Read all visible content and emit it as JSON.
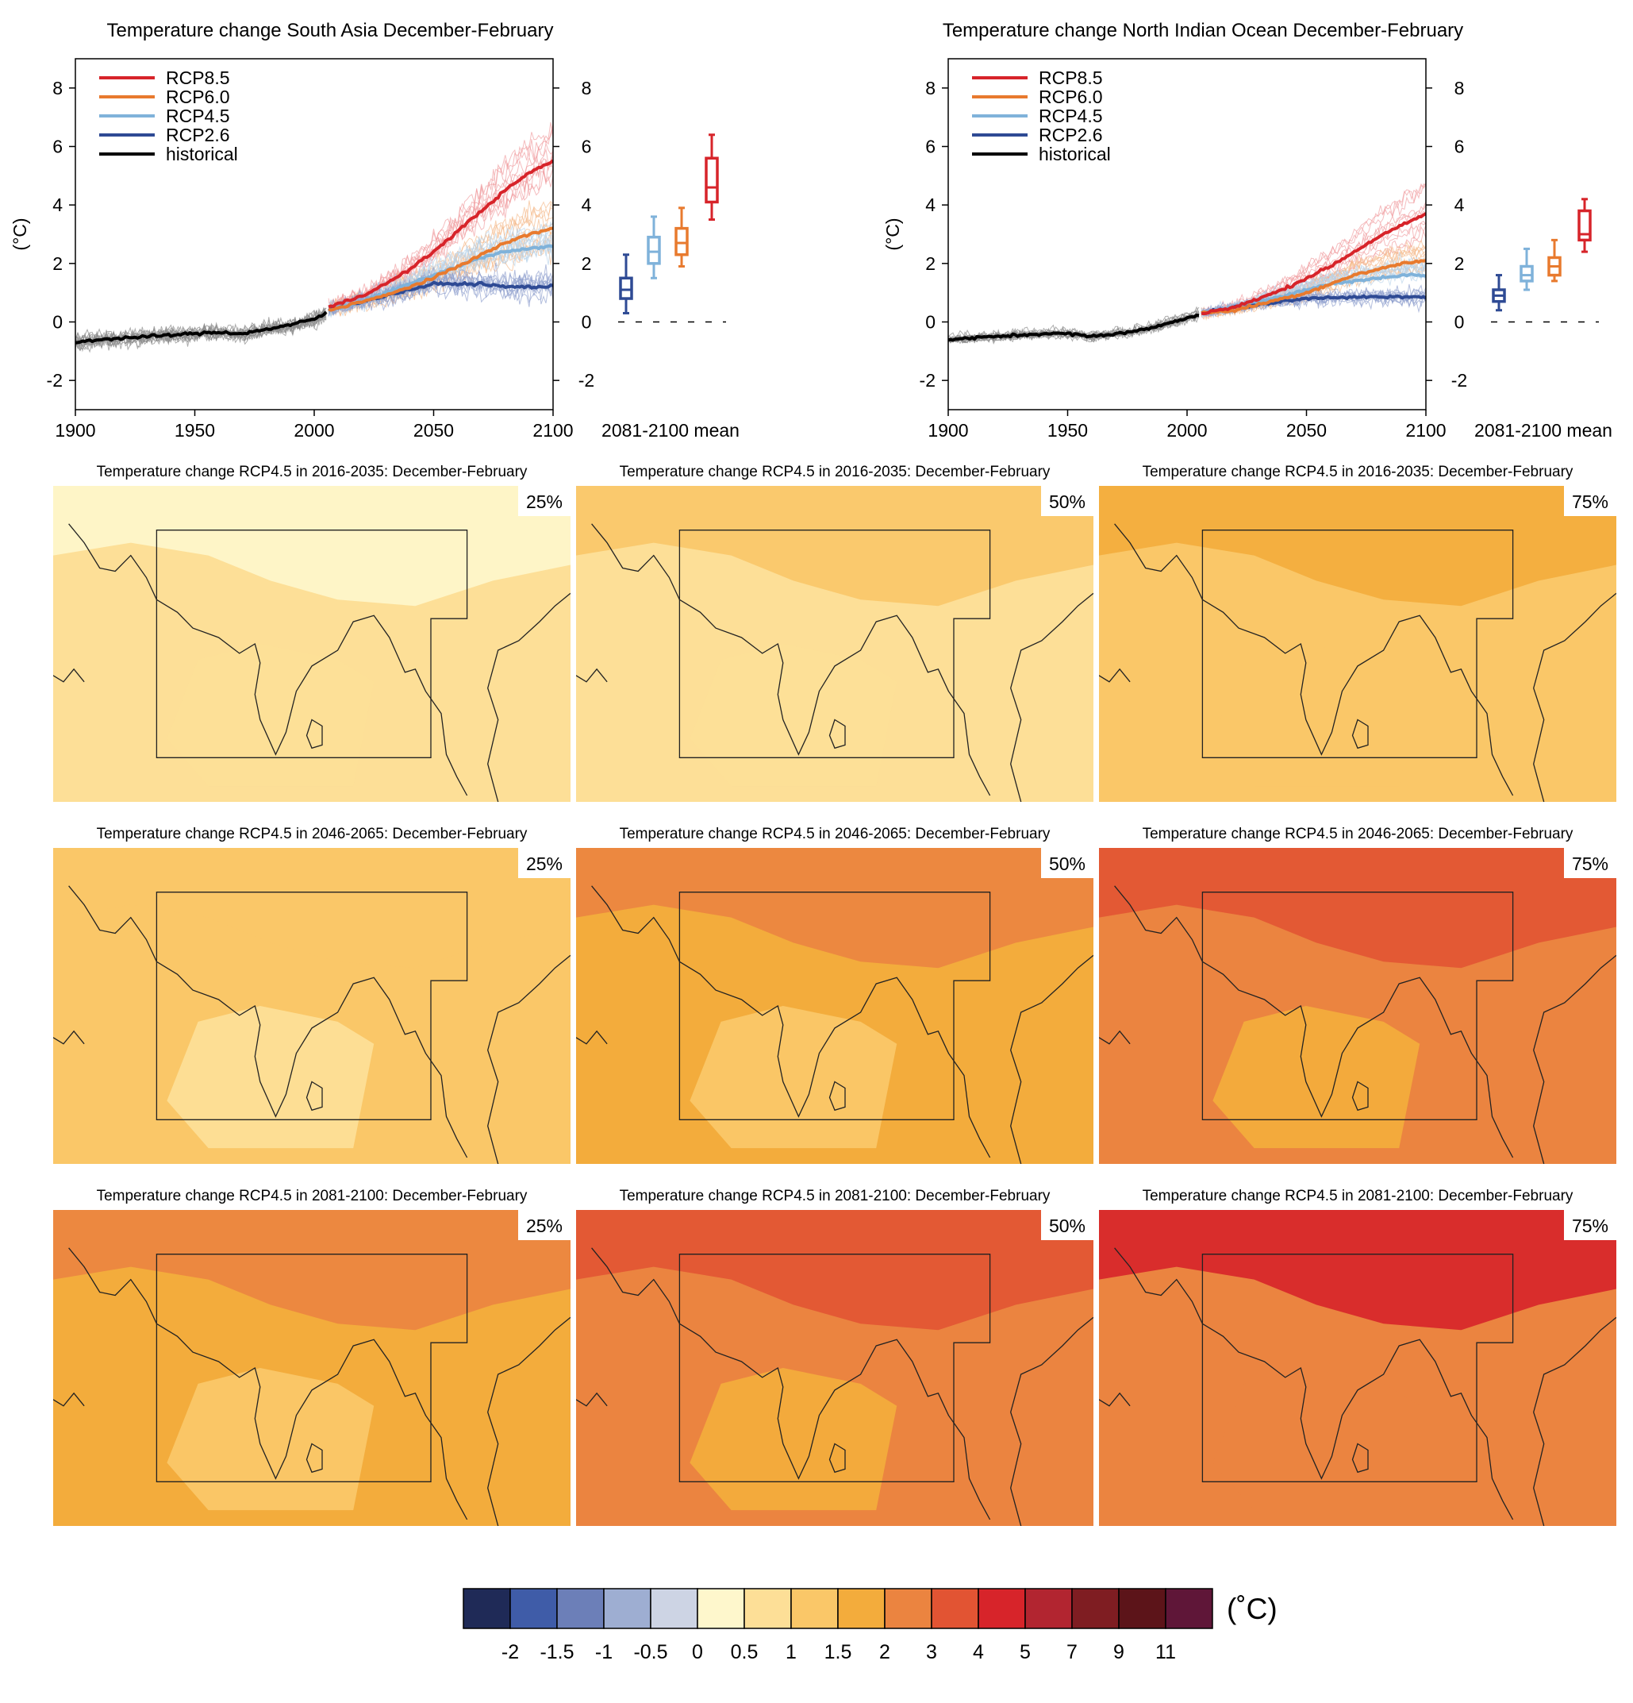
{
  "palette": {
    "rcp85": "#d7242a",
    "rcp60": "#e87a2e",
    "rcp45": "#7fb2da",
    "rcp26": "#2e4a94",
    "historical": "#000000",
    "historical_members": "#8a8a8a"
  },
  "timeseries_xticks": [
    "1900",
    "1950",
    "2000",
    "2050",
    "2100"
  ],
  "timeseries_yticks": [
    "-2",
    "0",
    "2",
    "4",
    "6",
    "8"
  ],
  "chart_data": [
    {
      "type": "line",
      "title": "Temperature change South Asia December-February",
      "ylabel": "(°C)",
      "xlabel": "",
      "xlim": [
        1900,
        2100
      ],
      "ylim": [
        -3,
        9
      ],
      "legend_position": "top-left",
      "series": [
        {
          "name": "RCP8.5",
          "color": "#d7242a",
          "x": [
            2006,
            2020,
            2030,
            2040,
            2050,
            2060,
            2070,
            2080,
            2090,
            2100
          ],
          "y": [
            0.5,
            0.9,
            1.3,
            1.8,
            2.4,
            3.1,
            3.8,
            4.5,
            5.1,
            5.5
          ]
        },
        {
          "name": "RCP6.0",
          "color": "#e87a2e",
          "x": [
            2006,
            2020,
            2030,
            2040,
            2050,
            2060,
            2070,
            2080,
            2090,
            2100
          ],
          "y": [
            0.4,
            0.7,
            0.9,
            1.2,
            1.5,
            1.9,
            2.3,
            2.7,
            3.0,
            3.2
          ]
        },
        {
          "name": "RCP4.5",
          "color": "#7fb2da",
          "x": [
            2006,
            2020,
            2030,
            2040,
            2050,
            2060,
            2070,
            2080,
            2090,
            2100
          ],
          "y": [
            0.4,
            0.7,
            1.0,
            1.3,
            1.6,
            1.9,
            2.2,
            2.4,
            2.5,
            2.6
          ]
        },
        {
          "name": "RCP2.6",
          "color": "#2e4a94",
          "x": [
            2006,
            2020,
            2030,
            2040,
            2050,
            2060,
            2070,
            2080,
            2090,
            2100
          ],
          "y": [
            0.4,
            0.7,
            0.9,
            1.1,
            1.3,
            1.3,
            1.3,
            1.2,
            1.2,
            1.2
          ]
        },
        {
          "name": "historical",
          "color": "#000000",
          "x": [
            1900,
            1910,
            1920,
            1930,
            1940,
            1950,
            1960,
            1970,
            1980,
            1990,
            2000,
            2005
          ],
          "y": [
            -0.7,
            -0.6,
            -0.55,
            -0.5,
            -0.45,
            -0.4,
            -0.35,
            -0.4,
            -0.25,
            -0.1,
            0.1,
            0.3
          ]
        }
      ],
      "box_label": "2081-2100 mean",
      "boxes": [
        {
          "name": "RCP2.6",
          "color": "#2e4a94",
          "min": 0.3,
          "q1": 0.8,
          "median": 1.1,
          "q3": 1.5,
          "max": 2.3
        },
        {
          "name": "RCP4.5",
          "color": "#7fb2da",
          "min": 1.5,
          "q1": 2.0,
          "median": 2.4,
          "q3": 2.9,
          "max": 3.6
        },
        {
          "name": "RCP6.0",
          "color": "#e87a2e",
          "min": 1.9,
          "q1": 2.3,
          "median": 2.7,
          "q3": 3.2,
          "max": 3.9
        },
        {
          "name": "RCP8.5",
          "color": "#d7242a",
          "min": 3.5,
          "q1": 4.1,
          "median": 4.6,
          "q3": 5.6,
          "max": 6.4
        }
      ]
    },
    {
      "type": "line",
      "title": "Temperature change North Indian Ocean December-February",
      "ylabel": "(°C)",
      "xlabel": "",
      "xlim": [
        1900,
        2100
      ],
      "ylim": [
        -3,
        9
      ],
      "legend_position": "top-left",
      "series": [
        {
          "name": "RCP8.5",
          "color": "#d7242a",
          "x": [
            2006,
            2020,
            2030,
            2040,
            2050,
            2060,
            2070,
            2080,
            2090,
            2100
          ],
          "y": [
            0.3,
            0.5,
            0.8,
            1.1,
            1.5,
            1.9,
            2.4,
            2.9,
            3.3,
            3.7
          ]
        },
        {
          "name": "RCP6.0",
          "color": "#e87a2e",
          "x": [
            2006,
            2020,
            2030,
            2040,
            2050,
            2060,
            2070,
            2080,
            2090,
            2100
          ],
          "y": [
            0.3,
            0.4,
            0.6,
            0.8,
            1.0,
            1.3,
            1.6,
            1.8,
            2.0,
            2.1
          ]
        },
        {
          "name": "RCP4.5",
          "color": "#7fb2da",
          "x": [
            2006,
            2020,
            2030,
            2040,
            2050,
            2060,
            2070,
            2080,
            2090,
            2100
          ],
          "y": [
            0.3,
            0.5,
            0.7,
            0.9,
            1.1,
            1.3,
            1.4,
            1.5,
            1.6,
            1.6
          ]
        },
        {
          "name": "RCP2.6",
          "color": "#2e4a94",
          "x": [
            2006,
            2020,
            2030,
            2040,
            2050,
            2060,
            2070,
            2080,
            2090,
            2100
          ],
          "y": [
            0.3,
            0.5,
            0.6,
            0.7,
            0.8,
            0.85,
            0.85,
            0.85,
            0.85,
            0.85
          ]
        },
        {
          "name": "historical",
          "color": "#000000",
          "x": [
            1900,
            1910,
            1920,
            1930,
            1940,
            1950,
            1960,
            1970,
            1980,
            1990,
            2000,
            2005
          ],
          "y": [
            -0.6,
            -0.55,
            -0.5,
            -0.45,
            -0.4,
            -0.4,
            -0.5,
            -0.4,
            -0.3,
            -0.1,
            0.15,
            0.25
          ]
        }
      ],
      "box_label": "2081-2100 mean",
      "boxes": [
        {
          "name": "RCP2.6",
          "color": "#2e4a94",
          "min": 0.4,
          "q1": 0.7,
          "median": 0.9,
          "q3": 1.1,
          "max": 1.6
        },
        {
          "name": "RCP4.5",
          "color": "#7fb2da",
          "min": 1.1,
          "q1": 1.4,
          "median": 1.6,
          "q3": 1.9,
          "max": 2.5
        },
        {
          "name": "RCP6.0",
          "color": "#e87a2e",
          "min": 1.4,
          "q1": 1.6,
          "median": 1.9,
          "q3": 2.2,
          "max": 2.8
        },
        {
          "name": "RCP8.5",
          "color": "#d7242a",
          "min": 2.4,
          "q1": 2.8,
          "median": 3.0,
          "q3": 3.8,
          "max": 4.2
        }
      ]
    }
  ],
  "maps": {
    "titles": [
      "Temperature change RCP4.5 in 2016-2035: December-February",
      "Temperature change RCP4.5 in 2046-2065: December-February",
      "Temperature change RCP4.5 in 2081-2100: December-February"
    ],
    "percentiles": [
      "25%",
      "50%",
      "75%"
    ],
    "background_levels": [
      [
        "#fddf97",
        "#fddf97",
        "#fac768"
      ],
      [
        "#fac768",
        "#f3ac3c",
        "#eb8440"
      ],
      [
        "#f3ac3c",
        "#eb8440",
        "#eb8440"
      ]
    ],
    "warm_levels": [
      [
        "#fef7cc",
        "#fac768",
        "#f3ac3c"
      ],
      [
        "#fac768",
        "#eb8440",
        "#e25433"
      ],
      [
        "#eb8440",
        "#e25433",
        "#d7242a"
      ]
    ],
    "land_levels": [
      [
        "#fddf97",
        "#fddf97",
        "#fac768"
      ],
      [
        "#fddf97",
        "#fac768",
        "#f3ac3c"
      ],
      [
        "#fac768",
        "#f3ac3c",
        "#eb8440"
      ]
    ]
  },
  "colorbar": {
    "unit": "(˚C)",
    "colors": [
      "#1f2a57",
      "#3f5ca8",
      "#6c7fb8",
      "#9eaed2",
      "#cdd4e4",
      "#fef7cc",
      "#fddf97",
      "#fac768",
      "#f3ac3c",
      "#eb8440",
      "#e25433",
      "#d7242a",
      "#b22530",
      "#7f1d22",
      "#5c1419",
      "#5f1638"
    ],
    "labels": [
      "-2",
      "-1.5",
      "-1",
      "-0.5",
      "0",
      "0.5",
      "1",
      "1.5",
      "2",
      "3",
      "4",
      "5",
      "7",
      "9",
      "11"
    ]
  }
}
